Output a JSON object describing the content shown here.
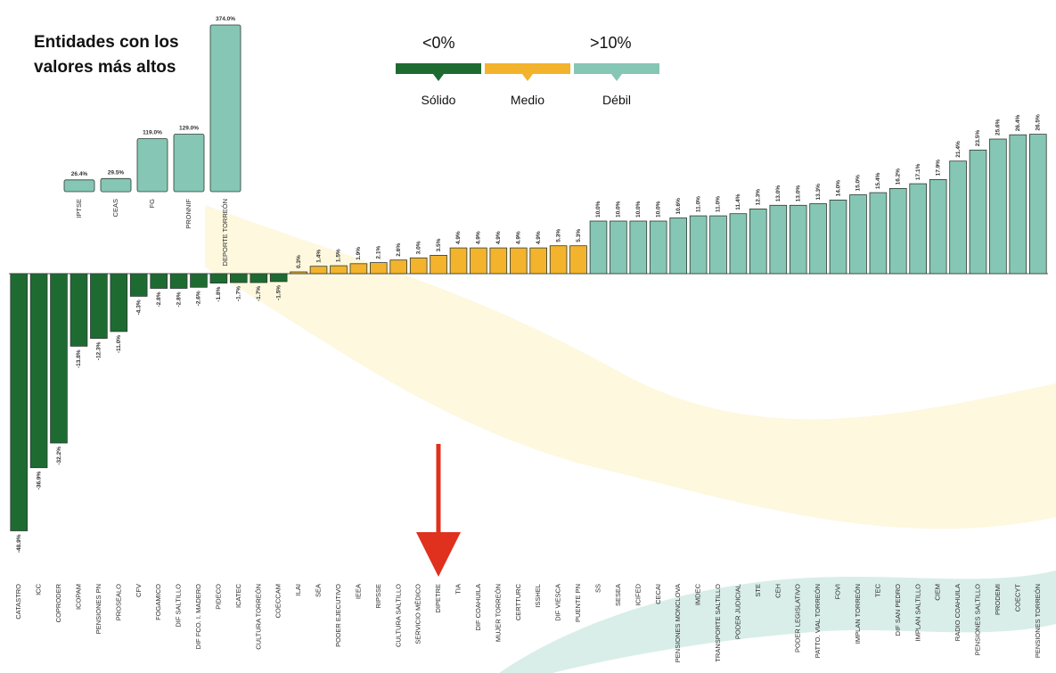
{
  "chart_data": [
    {
      "type": "bar",
      "title": "",
      "xlabel": "",
      "ylabel": "",
      "ylim": [
        -50,
        30
      ],
      "grid": false,
      "legend": {
        "position": "top-center",
        "thresholds": {
          "low": "<0%",
          "high": ">10%"
        },
        "entries": [
          {
            "label": "Sólido",
            "color": "#1e6b32"
          },
          {
            "label": "Medio",
            "color": "#f4b32c"
          },
          {
            "label": "Débil",
            "color": "#86c6b4"
          }
        ]
      },
      "categories": [
        "CATASTRO",
        "ICC",
        "COPRODER",
        "ICOPAM",
        "PENSIONES PN",
        "PROSEALO",
        "CFV",
        "FOGAMICO",
        "DIF SALTILLO",
        "DIF FCO. I. MADERO",
        "PIDECO",
        "ICATEC",
        "CULTURA TORREÓN",
        "COECCAM",
        "ILAI",
        "SEA",
        "PODER EJECUTIVO",
        "IEEA",
        "RIPSSE",
        "CULTURA SALTILLO",
        "SERVICIO MÉDICO",
        "DIPETRE",
        "TIA",
        "DIF COAHUILA",
        "MUJER TORREÓN",
        "CERTTURC",
        "ISSHEL",
        "DIF VIESCA",
        "PUENTE PN",
        "SS",
        "SESEA",
        "ICIFED",
        "CECAI",
        "PENSIONES MONCLOVA",
        "IMDEC",
        "TRANSPORTE SALTILLO",
        "PODER JUDICIAL",
        "STE",
        "CEH",
        "PODER LEGISLATIVO",
        "PATTO. VIAL TORREÓN",
        "FOVI",
        "IMPLAN TORREÓN",
        "TEC",
        "DIF SAN PEDRO",
        "IMPLAN SALTILLO",
        "CIEM",
        "RADIO COAHUILA",
        "PENSIONES SALTILLO",
        "PRODEMI",
        "COECYT",
        "PENSIONES TORREÓN"
      ],
      "values": [
        -48.9,
        -36.9,
        -32.2,
        -13.8,
        -12.3,
        -11.0,
        -4.3,
        -2.8,
        -2.8,
        -2.6,
        -1.8,
        -1.7,
        -1.7,
        -1.5,
        0.3,
        1.4,
        1.5,
        1.9,
        2.1,
        2.6,
        3.0,
        3.5,
        4.9,
        4.9,
        4.9,
        4.9,
        4.9,
        5.3,
        5.3,
        10.0,
        10.0,
        10.0,
        10.0,
        10.6,
        11.0,
        11.0,
        11.4,
        12.3,
        13.0,
        13.0,
        13.3,
        14.0,
        15.0,
        15.4,
        16.2,
        17.1,
        17.9,
        21.4,
        23.5,
        25.6,
        26.4,
        26.5
      ],
      "value_labels": [
        "-48.9%",
        "-36.9%",
        "-32.2%",
        "-13.8%",
        "-12.3%",
        "-11.0%",
        "-4.3%",
        "-2.8%",
        "-2.8%",
        "-2.6%",
        "-1.8%",
        "-1.7%",
        "-1.7%",
        "-1.5%",
        "0.3%",
        "1.4%",
        "1.5%",
        "1.9%",
        "2.1%",
        "2.6%",
        "3.0%",
        "3.5%",
        "4.9%",
        "4.9%",
        "4.9%",
        "4.9%",
        "4.9%",
        "5.3%",
        "5.3%",
        "10.0%",
        "10.0%",
        "10.0%",
        "10.0%",
        "10.6%",
        "11.0%",
        "11.0%",
        "11.4%",
        "12.3%",
        "13.0%",
        "13.0%",
        "13.3%",
        "14.0%",
        "15.0%",
        "15.4%",
        "16.2%",
        "17.1%",
        "17.9%",
        "21.4%",
        "23.5%",
        "25.6%",
        "26.4%",
        "26.5%"
      ]
    },
    {
      "type": "bar",
      "title": "Entidades con los valores más altos",
      "ylim": [
        0,
        380
      ],
      "categories": [
        "IPTSE",
        "CEAS",
        "FG",
        "PRONNIF",
        "DEPORTE TORREÓN"
      ],
      "values": [
        26.4,
        29.5,
        119.0,
        129.0,
        374.0
      ],
      "value_labels": [
        "26.4%",
        "29.5%",
        "119.0%",
        "129.0%",
        "374.0%"
      ],
      "color": "#86c6b4"
    }
  ],
  "annotation": {
    "type": "arrow",
    "color": "#e0301e",
    "target": "DIPETRE"
  }
}
